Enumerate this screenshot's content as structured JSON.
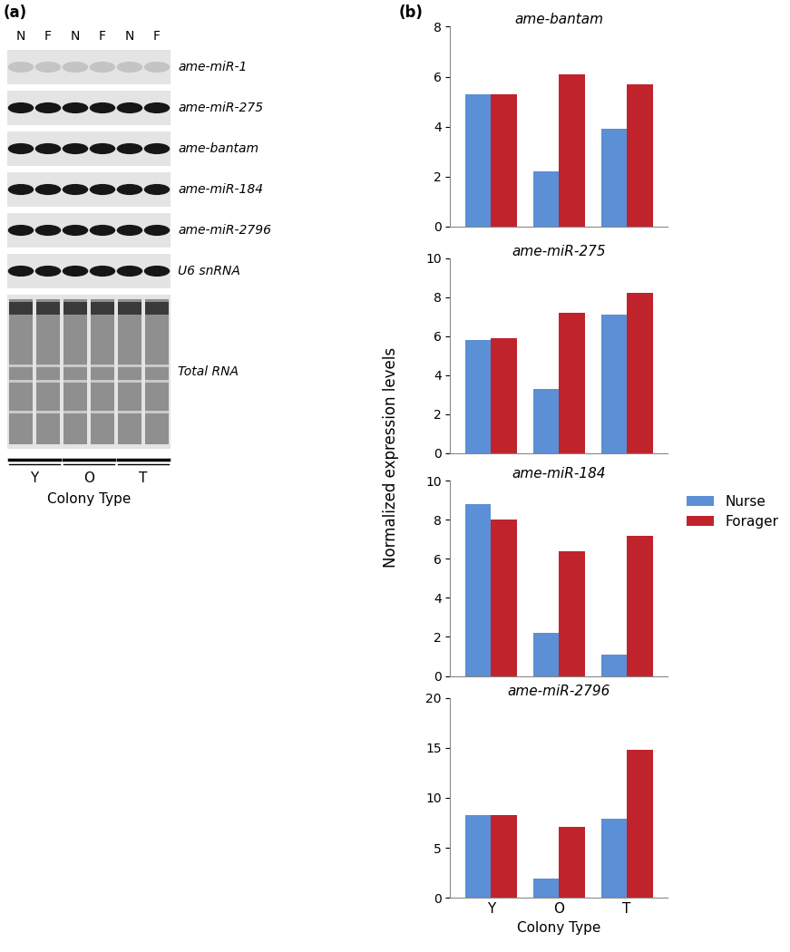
{
  "panel_labels": [
    "(a)",
    "(b)"
  ],
  "blot": {
    "lanes": [
      "N",
      "F",
      "N",
      "F",
      "N",
      "F"
    ],
    "rows": [
      "ame-miR-1",
      "ame-miR-275",
      "ame-bantam",
      "ame-miR-184",
      "ame-miR-2796",
      "U6 snRNA",
      "Total RNA"
    ],
    "groups": [
      "Y",
      "O",
      "T"
    ],
    "xlabel": "Colony Type"
  },
  "ylabel": "Normalized expression levels",
  "chart_data": [
    {
      "type": "bar",
      "title": "ame-bantam",
      "categories": [
        "Y",
        "O",
        "T"
      ],
      "series": [
        {
          "name": "Nurse",
          "color": "#5b8fd6",
          "values": [
            5.3,
            2.2,
            3.9
          ]
        },
        {
          "name": "Forager",
          "color": "#c0232c",
          "values": [
            5.3,
            6.1,
            5.7
          ]
        }
      ],
      "ylim": [
        0,
        8
      ],
      "yticks": [
        0,
        2,
        4,
        6,
        8
      ],
      "tick_labels": "y"
    },
    {
      "type": "bar",
      "title": "ame-miR-275",
      "categories": [
        "Y",
        "O",
        "T"
      ],
      "series": [
        {
          "name": "Nurse",
          "color": "#5b8fd6",
          "values": [
            5.8,
            3.3,
            7.1
          ]
        },
        {
          "name": "Forager",
          "color": "#c0232c",
          "values": [
            5.9,
            7.2,
            8.2
          ]
        }
      ],
      "ylim": [
        0,
        10
      ],
      "yticks": [
        0,
        2,
        4,
        6,
        8,
        10
      ],
      "tick_labels": "y",
      "legend": "center left"
    },
    {
      "type": "bar",
      "title": "ame-miR-184",
      "categories": [
        "Y",
        "O",
        "T"
      ],
      "series": [
        {
          "name": "Nurse",
          "color": "#5b8fd6",
          "values": [
            8.8,
            2.2,
            1.1
          ]
        },
        {
          "name": "Forager",
          "color": "#c0232c",
          "values": [
            8.0,
            6.4,
            7.2
          ]
        }
      ],
      "ylim": [
        0,
        10
      ],
      "yticks": [
        0,
        2,
        4,
        6,
        8,
        10
      ],
      "tick_labels": "y"
    },
    {
      "type": "bar",
      "title": "ame-miR-2796",
      "categories": [
        "Y",
        "O",
        "T"
      ],
      "series": [
        {
          "name": "Nurse",
          "color": "#5b8fd6",
          "values": [
            8.3,
            1.9,
            7.9
          ]
        },
        {
          "name": "Forager",
          "color": "#c0232c",
          "values": [
            8.3,
            7.1,
            14.8
          ]
        }
      ],
      "ylim": [
        0,
        20
      ],
      "yticks": [
        0,
        5,
        10,
        15,
        20
      ],
      "xlabel": "Colony Type"
    }
  ]
}
